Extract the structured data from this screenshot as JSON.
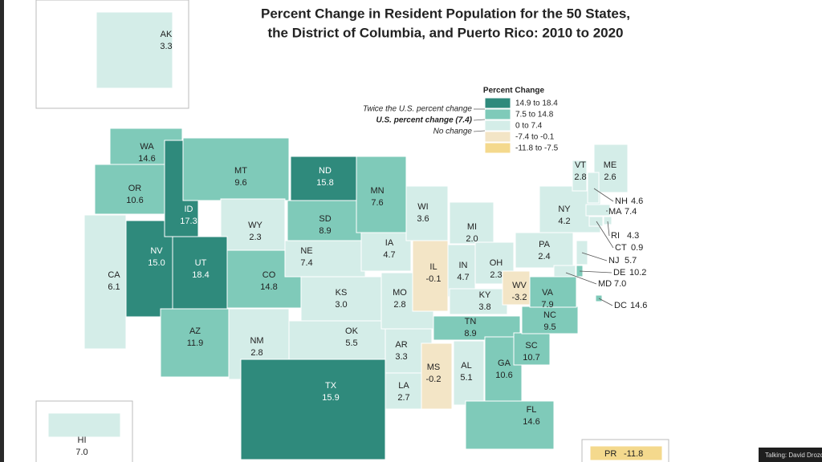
{
  "title": [
    "Percent Change in Resident Population for the 50 States,",
    "the District of Columbia, and Puerto Rico: 2010 to 2020"
  ],
  "legend": {
    "title": "Percent Change",
    "classes": [
      {
        "label": "14.9 to 18.4",
        "color": "#2f8a7c"
      },
      {
        "label": "7.5 to 14.8",
        "color": "#7fcab9"
      },
      {
        "label": "0 to 7.4",
        "color": "#d4ede8"
      },
      {
        "label": "-7.4 to -0.1",
        "color": "#f3e5c6"
      },
      {
        "label": "-11.8 to -7.5",
        "color": "#f4d98d"
      }
    ],
    "annotations": [
      "Twice the U.S. percent change",
      "U.S. percent change (7.4)",
      "No change"
    ]
  },
  "states": [
    {
      "abbr": "AK",
      "value": 3.3,
      "color": "#d4ede8"
    },
    {
      "abbr": "WA",
      "value": 14.6,
      "color": "#7fcab9"
    },
    {
      "abbr": "OR",
      "value": 10.6,
      "color": "#7fcab9"
    },
    {
      "abbr": "CA",
      "value": 6.1,
      "color": "#d4ede8"
    },
    {
      "abbr": "NV",
      "value": 15.0,
      "value_label": "15.0",
      "color": "#2f8a7c"
    },
    {
      "abbr": "ID",
      "value": 17.3,
      "color": "#2f8a7c"
    },
    {
      "abbr": "MT",
      "value": 9.6,
      "color": "#7fcab9"
    },
    {
      "abbr": "WY",
      "value": 2.3,
      "color": "#d4ede8"
    },
    {
      "abbr": "UT",
      "value": 18.4,
      "color": "#2f8a7c"
    },
    {
      "abbr": "CO",
      "value": 14.8,
      "color": "#7fcab9"
    },
    {
      "abbr": "AZ",
      "value": 11.9,
      "color": "#7fcab9"
    },
    {
      "abbr": "NM",
      "value": 2.8,
      "color": "#d4ede8"
    },
    {
      "abbr": "ND",
      "value": 15.8,
      "color": "#2f8a7c"
    },
    {
      "abbr": "SD",
      "value": 8.9,
      "color": "#7fcab9"
    },
    {
      "abbr": "NE",
      "value": 7.4,
      "color": "#d4ede8"
    },
    {
      "abbr": "KS",
      "value": 3.0,
      "value_label": "3.0",
      "color": "#d4ede8"
    },
    {
      "abbr": "OK",
      "value": 5.5,
      "color": "#d4ede8"
    },
    {
      "abbr": "TX",
      "value": 15.9,
      "color": "#2f8a7c"
    },
    {
      "abbr": "MN",
      "value": 7.6,
      "color": "#7fcab9"
    },
    {
      "abbr": "IA",
      "value": 4.7,
      "color": "#d4ede8"
    },
    {
      "abbr": "MO",
      "value": 2.8,
      "color": "#d4ede8"
    },
    {
      "abbr": "AR",
      "value": 3.3,
      "color": "#d4ede8"
    },
    {
      "abbr": "LA",
      "value": 2.7,
      "color": "#d4ede8"
    },
    {
      "abbr": "WI",
      "value": 3.6,
      "color": "#d4ede8"
    },
    {
      "abbr": "IL",
      "value": -0.1,
      "color": "#f3e5c6"
    },
    {
      "abbr": "MI",
      "value": 2.0,
      "value_label": "2.0",
      "color": "#d4ede8"
    },
    {
      "abbr": "IN",
      "value": 4.7,
      "color": "#d4ede8"
    },
    {
      "abbr": "OH",
      "value": 2.3,
      "color": "#d4ede8"
    },
    {
      "abbr": "KY",
      "value": 3.8,
      "color": "#d4ede8"
    },
    {
      "abbr": "TN",
      "value": 8.9,
      "color": "#7fcab9"
    },
    {
      "abbr": "MS",
      "value": -0.2,
      "color": "#f3e5c6"
    },
    {
      "abbr": "AL",
      "value": 5.1,
      "color": "#d4ede8"
    },
    {
      "abbr": "GA",
      "value": 10.6,
      "color": "#7fcab9"
    },
    {
      "abbr": "FL",
      "value": 14.6,
      "color": "#7fcab9"
    },
    {
      "abbr": "SC",
      "value": 10.7,
      "color": "#7fcab9"
    },
    {
      "abbr": "NC",
      "value": 9.5,
      "color": "#7fcab9"
    },
    {
      "abbr": "VA",
      "value": 7.9,
      "color": "#7fcab9"
    },
    {
      "abbr": "WV",
      "value": -3.2,
      "color": "#f3e5c6"
    },
    {
      "abbr": "PA",
      "value": 2.4,
      "color": "#d4ede8"
    },
    {
      "abbr": "NY",
      "value": 4.2,
      "color": "#d4ede8"
    },
    {
      "abbr": "VT",
      "value": 2.8,
      "color": "#d4ede8"
    },
    {
      "abbr": "ME",
      "value": 2.6,
      "color": "#d4ede8"
    },
    {
      "abbr": "NH",
      "value": 4.6,
      "color": "#d4ede8"
    },
    {
      "abbr": "MA",
      "value": 7.4,
      "color": "#d4ede8"
    },
    {
      "abbr": "RI",
      "value": 4.3,
      "color": "#d4ede8"
    },
    {
      "abbr": "CT",
      "value": 0.9,
      "color": "#d4ede8"
    },
    {
      "abbr": "NJ",
      "value": 5.7,
      "color": "#d4ede8"
    },
    {
      "abbr": "DE",
      "value": 10.2,
      "color": "#7fcab9"
    },
    {
      "abbr": "MD",
      "value": 7.0,
      "value_label": "7.0",
      "color": "#d4ede8"
    },
    {
      "abbr": "DC",
      "value": 14.6,
      "color": "#7fcab9"
    },
    {
      "abbr": "HI",
      "value": 7.0,
      "value_label": "7.0",
      "color": "#d4ede8"
    },
    {
      "abbr": "PR",
      "value": -11.8,
      "color": "#f4d98d"
    }
  ],
  "overlay": "Talking: David Drozd"
}
